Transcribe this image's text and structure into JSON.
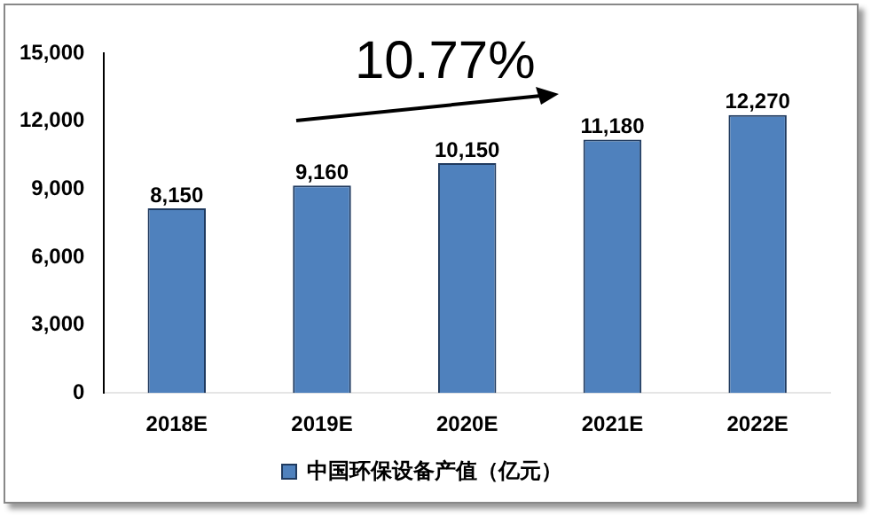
{
  "chart_data": {
    "type": "bar",
    "categories": [
      "2018E",
      "2019E",
      "2020E",
      "2021E",
      "2022E"
    ],
    "series": [
      {
        "name": "中国环保设备产值（亿元）",
        "color": "#4f81bd",
        "values": [
          8150,
          9160,
          10150,
          11180,
          12270
        ],
        "value_labels": [
          "8,150",
          "9,160",
          "10,150",
          "11,180",
          "12,270"
        ]
      }
    ],
    "ylim": [
      0,
      15000
    ],
    "yticks": [
      {
        "value": 0,
        "label": "0"
      },
      {
        "value": 3000,
        "label": "3,000"
      },
      {
        "value": 6000,
        "label": "6,000"
      },
      {
        "value": 9000,
        "label": "9,000"
      },
      {
        "value": 12000,
        "label": "12,000"
      },
      {
        "value": 15000,
        "label": "15,000"
      }
    ],
    "grid": false,
    "legend": "bottom",
    "annotations": [
      "10.77%"
    ]
  }
}
